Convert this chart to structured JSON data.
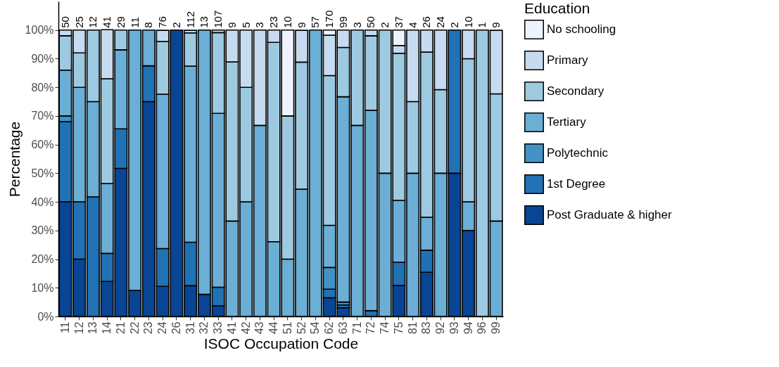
{
  "chart_data": {
    "type": "bar",
    "stacked": true,
    "xlabel": "ISOC Occupation Code",
    "ylabel": "Percentage",
    "legend_title": "Education",
    "legend": "right",
    "categories": [
      "11",
      "12",
      "13",
      "14",
      "21",
      "22",
      "23",
      "24",
      "26",
      "31",
      "32",
      "33",
      "41",
      "42",
      "43",
      "44",
      "51",
      "52",
      "54",
      "62",
      "63",
      "71",
      "72",
      "74",
      "75",
      "81",
      "83",
      "92",
      "93",
      "94",
      "96",
      "99"
    ],
    "ylim": [
      0,
      110
    ],
    "yticks": [
      {
        "value": 0,
        "label": "0%"
      },
      {
        "value": 10,
        "label": "10%"
      },
      {
        "value": 20,
        "label": "20%"
      },
      {
        "value": 30,
        "label": "30%"
      },
      {
        "value": 40,
        "label": "40%"
      },
      {
        "value": 50,
        "label": "50%"
      },
      {
        "value": 60,
        "label": "60%"
      },
      {
        "value": 70,
        "label": "70%"
      },
      {
        "value": 80,
        "label": "80%"
      },
      {
        "value": 90,
        "label": "90%"
      },
      {
        "value": 100,
        "label": "100%"
      }
    ],
    "series": [
      {
        "name": "Post Graduate & higher",
        "color": "#084594",
        "values": [
          40,
          20,
          null,
          12.2,
          51.7,
          9.1,
          75,
          10.5,
          100,
          10.7,
          7.7,
          3.7,
          null,
          null,
          null,
          null,
          null,
          null,
          null,
          6.5,
          3,
          null,
          null,
          null,
          10.8,
          null,
          15.4,
          null,
          50,
          30,
          null,
          null
        ]
      },
      {
        "name": "1st Degree",
        "color": "#2171b5",
        "values": [
          28,
          20,
          41.7,
          9.8,
          13.8,
          null,
          12.5,
          13.2,
          null,
          15.2,
          null,
          6.5,
          null,
          null,
          null,
          null,
          null,
          null,
          null,
          3,
          1,
          null,
          2,
          null,
          8.1,
          null,
          7.7,
          null,
          50,
          null,
          null,
          null
        ]
      },
      {
        "name": "Polytechnic",
        "color": "#4292c6",
        "values": [
          2,
          null,
          null,
          null,
          null,
          null,
          null,
          null,
          null,
          null,
          null,
          null,
          null,
          null,
          null,
          null,
          null,
          null,
          null,
          7.6,
          1,
          null,
          null,
          null,
          null,
          null,
          null,
          null,
          null,
          null,
          null,
          null
        ]
      },
      {
        "name": "Tertiary",
        "color": "#6baed6",
        "values": [
          16,
          40,
          33.3,
          24.4,
          27.6,
          90.9,
          12.5,
          53.9,
          null,
          61.5,
          92.3,
          60.7,
          33.3,
          40,
          66.7,
          26.1,
          20,
          44.4,
          100,
          14.7,
          71.7,
          66.7,
          70,
          50,
          21.6,
          50,
          11.5,
          50,
          null,
          10,
          null,
          33.3
        ]
      },
      {
        "name": "Secondary",
        "color": "#9ecae1",
        "values": [
          12,
          12,
          25,
          36.6,
          6.9,
          null,
          null,
          18.4,
          null,
          11.6,
          null,
          28.2,
          55.6,
          40,
          null,
          69.6,
          50,
          44.4,
          null,
          52.3,
          17.2,
          33.3,
          26,
          50,
          51.4,
          25,
          57.7,
          29.2,
          null,
          50,
          100,
          44.4
        ]
      },
      {
        "name": "Primary",
        "color": "#c6dbef",
        "values": [
          2,
          8,
          null,
          17.1,
          null,
          null,
          null,
          3.9,
          null,
          0.9,
          null,
          0.9,
          11.1,
          20,
          33.3,
          4.3,
          null,
          11.1,
          null,
          14.1,
          6.1,
          null,
          2,
          null,
          2.7,
          25,
          7.7,
          20.8,
          null,
          10,
          null,
          22.2
        ]
      },
      {
        "name": "No schooling",
        "color": "#eff3ff",
        "values": [
          null,
          null,
          null,
          null,
          null,
          null,
          null,
          null,
          null,
          null,
          null,
          null,
          null,
          null,
          null,
          null,
          30,
          null,
          null,
          1.8,
          null,
          null,
          null,
          null,
          5.4,
          null,
          null,
          null,
          null,
          null,
          null,
          null
        ]
      }
    ],
    "annotations": [
      {
        "text": "50",
        "x": "11",
        "y": 100
      },
      {
        "text": "25",
        "x": "12",
        "y": 100
      },
      {
        "text": "12",
        "x": "13",
        "y": 100
      },
      {
        "text": "41",
        "x": "14",
        "y": 100
      },
      {
        "text": "29",
        "x": "21",
        "y": 100
      },
      {
        "text": "11",
        "x": "22",
        "y": 100
      },
      {
        "text": "8",
        "x": "23",
        "y": 100
      },
      {
        "text": "76",
        "x": "24",
        "y": 100
      },
      {
        "text": "2",
        "x": "26",
        "y": 100
      },
      {
        "text": "112",
        "x": "31",
        "y": 100
      },
      {
        "text": "13",
        "x": "32",
        "y": 100
      },
      {
        "text": "107",
        "x": "33",
        "y": 100
      },
      {
        "text": "9",
        "x": "41",
        "y": 100
      },
      {
        "text": "5",
        "x": "42",
        "y": 100
      },
      {
        "text": "3",
        "x": "43",
        "y": 100
      },
      {
        "text": "23",
        "x": "44",
        "y": 100
      },
      {
        "text": "10",
        "x": "51",
        "y": 100
      },
      {
        "text": "9",
        "x": "52",
        "y": 100
      },
      {
        "text": "57",
        "x": "54",
        "y": 100
      },
      {
        "text": "170",
        "x": "62",
        "y": 100
      },
      {
        "text": "99",
        "x": "63",
        "y": 100
      },
      {
        "text": "3",
        "x": "71",
        "y": 100
      },
      {
        "text": "50",
        "x": "72",
        "y": 100
      },
      {
        "text": "2",
        "x": "74",
        "y": 100
      },
      {
        "text": "37",
        "x": "75",
        "y": 100
      },
      {
        "text": "4",
        "x": "81",
        "y": 100
      },
      {
        "text": "26",
        "x": "83",
        "y": 100
      },
      {
        "text": "24",
        "x": "92",
        "y": 100
      },
      {
        "text": "2",
        "x": "93",
        "y": 100
      },
      {
        "text": "10",
        "x": "94",
        "y": 100
      },
      {
        "text": "1",
        "x": "96",
        "y": 100
      },
      {
        "text": "9",
        "x": "99",
        "y": 100
      }
    ]
  }
}
